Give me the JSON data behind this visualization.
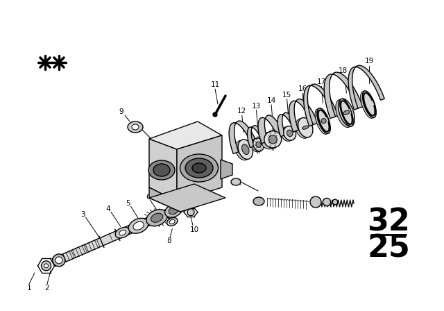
{
  "bg_color": "#ffffff",
  "line_color": "#000000",
  "fig_width": 6.4,
  "fig_height": 4.48,
  "dpi": 100,
  "page_num_top": "32",
  "page_num_bot": "25",
  "page_num_fontsize": 32
}
